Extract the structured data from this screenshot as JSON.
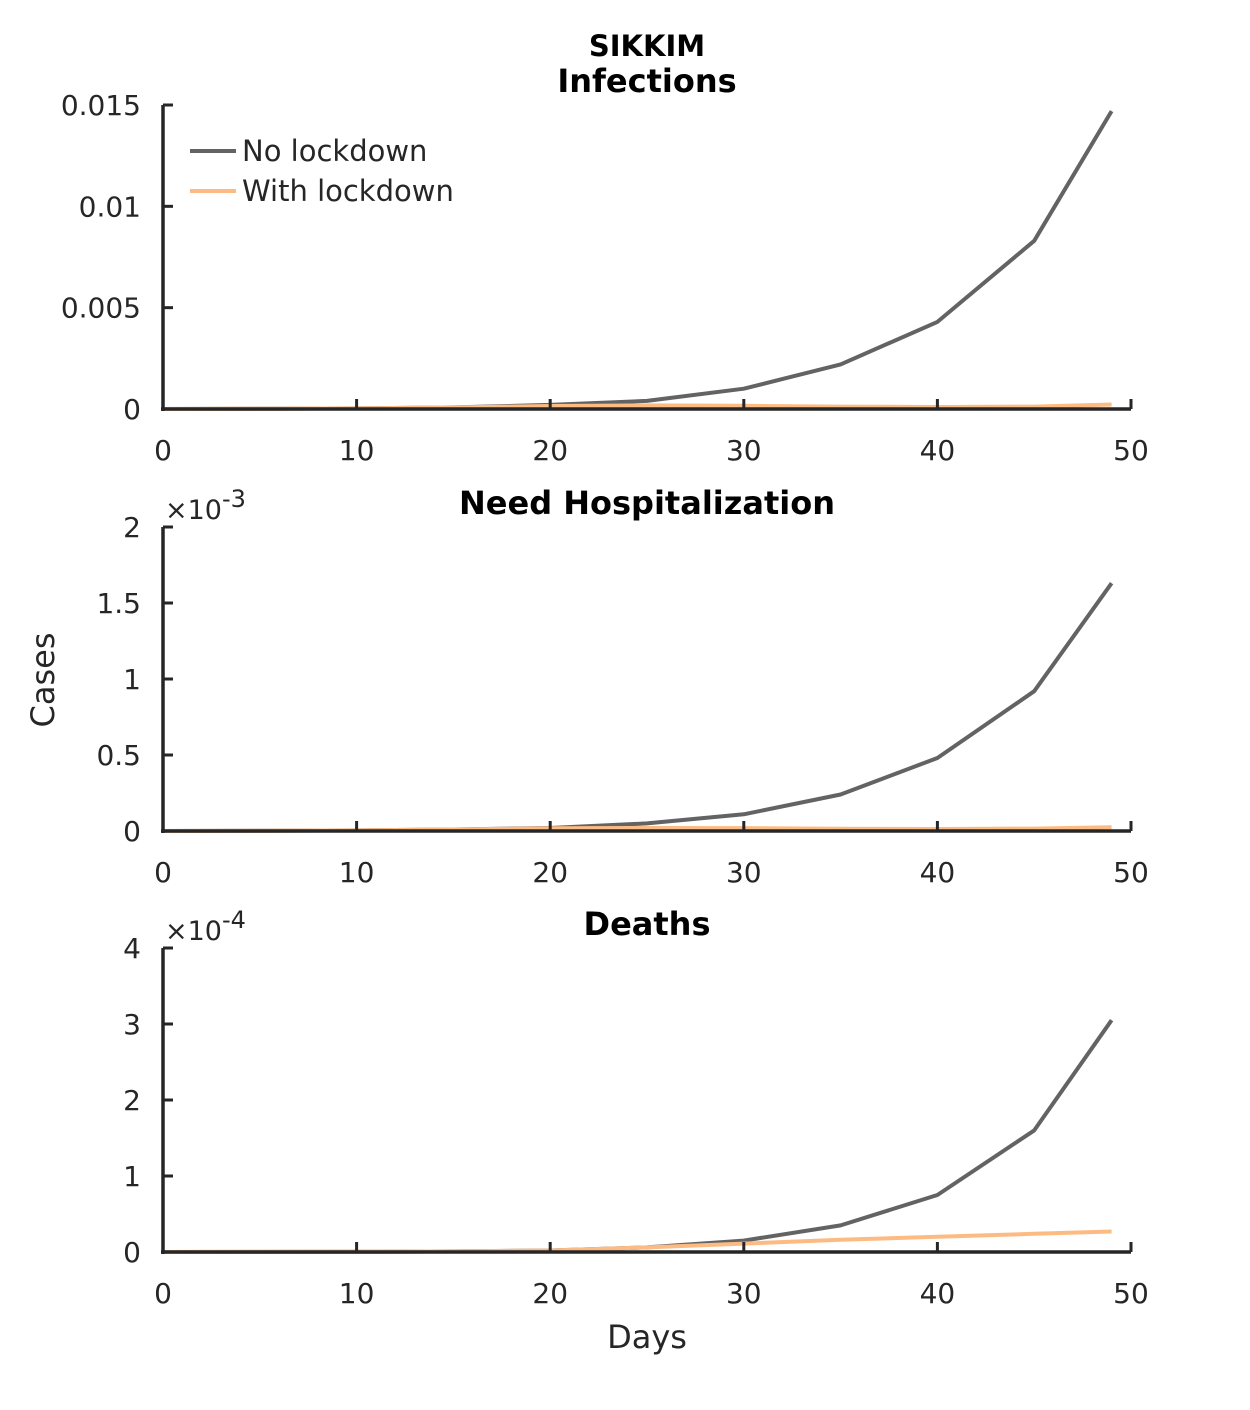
{
  "figure": {
    "suptitle": "SIKKIM",
    "ylabel": "Cases",
    "xlabel": "Days"
  },
  "legend": {
    "items": [
      {
        "label": "No lockdown",
        "color": "#636363"
      },
      {
        "label": "With lockdown",
        "color": "#fdbb84"
      }
    ]
  },
  "chart_data": [
    {
      "type": "line",
      "title": "Infections",
      "xlim": [
        0,
        50
      ],
      "ylim": [
        0,
        0.015
      ],
      "xticks": [
        0,
        10,
        20,
        30,
        40,
        50
      ],
      "yticks": [
        0,
        0.005,
        0.01,
        0.015
      ],
      "ytick_labels": [
        "0",
        "0.005",
        "0.01",
        "0.015"
      ],
      "exponent_label": "",
      "series": [
        {
          "name": "No lockdown",
          "color": "#636363",
          "x": [
            0,
            5,
            10,
            15,
            20,
            25,
            30,
            35,
            40,
            45,
            49
          ],
          "y": [
            0,
            1e-05,
            3e-05,
            8e-05,
            0.0002,
            0.0004,
            0.001,
            0.0022,
            0.0043,
            0.0083,
            0.0147
          ]
        },
        {
          "name": "With lockdown",
          "color": "#fdbb84",
          "x": [
            0,
            5,
            10,
            15,
            20,
            25,
            30,
            35,
            40,
            45,
            49
          ],
          "y": [
            0,
            1e-05,
            3e-05,
            8e-05,
            0.00015,
            0.00018,
            0.00016,
            0.00012,
            0.0001,
            0.00012,
            0.00022
          ]
        }
      ]
    },
    {
      "type": "line",
      "title": "Need Hospitalization",
      "xlim": [
        0,
        50
      ],
      "ylim": [
        0,
        0.002
      ],
      "xticks": [
        0,
        10,
        20,
        30,
        40,
        50
      ],
      "yticks": [
        0,
        0.0005,
        0.001,
        0.0015,
        0.002
      ],
      "ytick_labels": [
        "0",
        "0.5",
        "1",
        "1.5",
        "2"
      ],
      "exponent_label": "×10",
      "exponent_power": "-3",
      "series": [
        {
          "name": "No lockdown",
          "color": "#636363",
          "x": [
            0,
            5,
            10,
            15,
            20,
            25,
            30,
            35,
            40,
            45,
            49
          ],
          "y": [
            0,
            2e-06,
            4e-06,
            1e-05,
            2e-05,
            5e-05,
            0.00011,
            0.00024,
            0.00048,
            0.00092,
            0.00163
          ]
        },
        {
          "name": "With lockdown",
          "color": "#fdbb84",
          "x": [
            0,
            5,
            10,
            15,
            20,
            25,
            30,
            35,
            40,
            45,
            49
          ],
          "y": [
            0,
            2e-06,
            4e-06,
            1e-05,
            1.8e-05,
            2e-05,
            1.9e-05,
            1.5e-05,
            1.3e-05,
            1.6e-05,
            2.5e-05
          ]
        }
      ]
    },
    {
      "type": "line",
      "title": "Deaths",
      "xlim": [
        0,
        50
      ],
      "ylim": [
        0,
        0.0004
      ],
      "xticks": [
        0,
        10,
        20,
        30,
        40,
        50
      ],
      "yticks": [
        0,
        0.0001,
        0.0002,
        0.0003,
        0.0004
      ],
      "ytick_labels": [
        "0",
        "1",
        "2",
        "3",
        "4"
      ],
      "exponent_label": "×10",
      "exponent_power": "-4",
      "series": [
        {
          "name": "No lockdown",
          "color": "#636363",
          "x": [
            0,
            5,
            10,
            15,
            20,
            25,
            30,
            35,
            40,
            45,
            49
          ],
          "y": [
            0,
            1e-07,
            3e-07,
            8e-07,
            2e-06,
            6e-06,
            1.5e-05,
            3.5e-05,
            7.5e-05,
            0.00016,
            0.000305
          ]
        },
        {
          "name": "With lockdown",
          "color": "#fdbb84",
          "x": [
            0,
            5,
            10,
            15,
            20,
            25,
            30,
            35,
            40,
            45,
            49
          ],
          "y": [
            0,
            1e-07,
            3e-07,
            8e-07,
            2e-06,
            6e-06,
            1.1e-05,
            1.6e-05,
            2e-05,
            2.4e-05,
            2.7e-05
          ]
        }
      ]
    }
  ]
}
